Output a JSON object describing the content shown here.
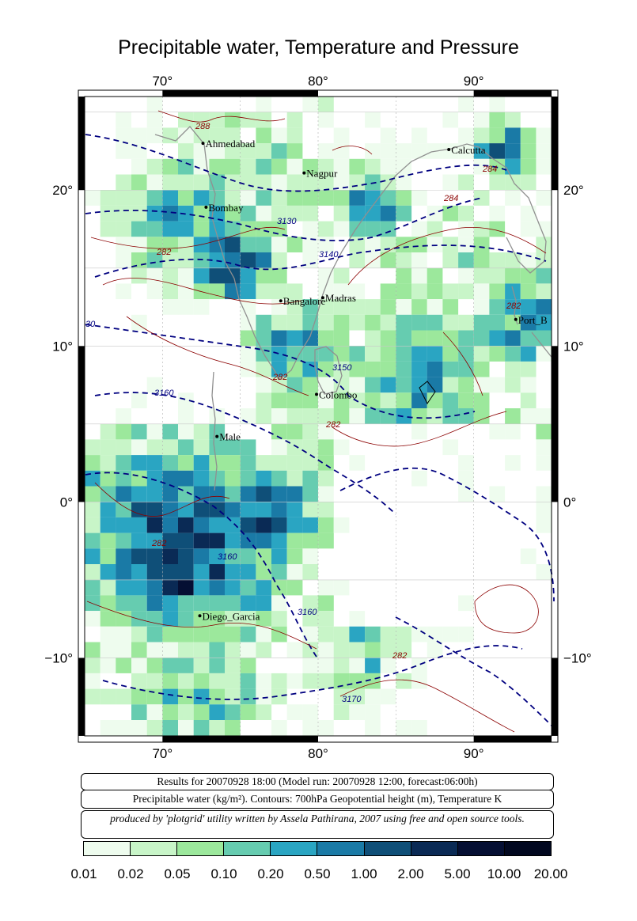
{
  "title": "Precipitable water, Temperature and Pressure",
  "lon_ticks": [
    "70°",
    "80°",
    "90°"
  ],
  "lat_ticks": [
    "20°",
    "10°",
    "0°",
    "−10°"
  ],
  "cities": [
    {
      "name": "Ahmedabad",
      "lon": 72.6,
      "lat": 23.0
    },
    {
      "name": "Nagpur",
      "lon": 79.1,
      "lat": 21.1
    },
    {
      "name": "Calcutta",
      "lon": 88.4,
      "lat": 22.6
    },
    {
      "name": "Bombay",
      "lon": 72.8,
      "lat": 18.9
    },
    {
      "name": "Bangalore",
      "lon": 77.6,
      "lat": 12.9
    },
    {
      "name": "Madras",
      "lon": 80.3,
      "lat": 13.1
    },
    {
      "name": "Port_B",
      "lon": 92.7,
      "lat": 11.7
    },
    {
      "name": "Colombo",
      "lon": 79.9,
      "lat": 6.9
    },
    {
      "name": "Male",
      "lon": 73.5,
      "lat": 4.2
    },
    {
      "name": "Diego_Garcia",
      "lon": 72.4,
      "lat": -7.3
    }
  ],
  "contour_labels": {
    "height": [
      "3130",
      "3140",
      "3160",
      "3150",
      "3160",
      "3160",
      "3170",
      "30"
    ],
    "temperature": [
      "288",
      "284",
      "284",
      "282",
      "282",
      "282",
      "282",
      "282",
      "282"
    ]
  },
  "info": {
    "line1": "Results for 20070928 18:00 (Model run: 20070928 12:00, forecast:06:00h)",
    "line2": "Precipitable water (kg/m²).  Contours: 700hPa Geopotential height (m), Temperature K",
    "line3": "produced by 'plotgrid' utility written by Assela Pathirana, 2007 using free and open source tools."
  },
  "colorbar": {
    "colors": [
      "#eefcee",
      "#c8f5c8",
      "#9ce89c",
      "#66ccb0",
      "#2aa5c2",
      "#1a7aa6",
      "#0f4f78",
      "#0a2a55",
      "#050f33",
      "#020820"
    ],
    "labels": [
      "0.01",
      "0.02",
      "0.05",
      "0.10",
      "0.20",
      "0.50",
      "1.00",
      "2.00",
      "5.00",
      "10.00",
      "20.00"
    ]
  },
  "style": {
    "height_contour_color": "#000080",
    "temperature_contour_color": "#8b0000",
    "coastline_color": "#909090"
  }
}
